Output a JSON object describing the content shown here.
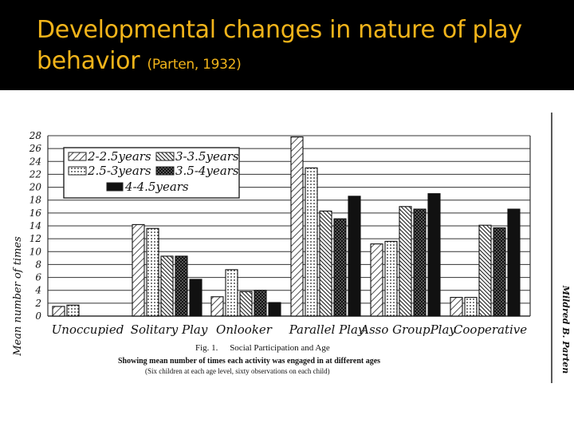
{
  "slide": {
    "title_main": "Developmental changes in nature of play behavior",
    "title_cite": "(Parten, 1932)"
  },
  "chart_data": {
    "type": "bar",
    "ylabel": "Mean number of times",
    "ylim": [
      0,
      28
    ],
    "y_ticks": [
      0,
      2,
      4,
      6,
      8,
      10,
      12,
      14,
      16,
      18,
      20,
      22,
      24,
      26,
      28
    ],
    "grid": true,
    "legend_placement": "top-left",
    "categories": [
      "Unoccupied",
      "Solitary Play",
      "Onlooker",
      "Parallel Play",
      "Asso GroupPlay",
      "Cooperative"
    ],
    "series": [
      {
        "name": "2-2.5years",
        "pattern": "diagonal-stripes",
        "values": [
          1.5,
          14.2,
          3.0,
          27.8,
          11.2,
          2.9
        ]
      },
      {
        "name": "2.5-3years",
        "pattern": "dots",
        "values": [
          1.7,
          13.6,
          7.2,
          23.0,
          11.6,
          2.9
        ]
      },
      {
        "name": "3-3.5years",
        "pattern": "dense-diagonal",
        "values": [
          0,
          9.3,
          3.8,
          16.3,
          17.0,
          14.1
        ]
      },
      {
        "name": "3.5-4years",
        "pattern": "checkered",
        "values": [
          0,
          9.3,
          4.0,
          15.1,
          16.6,
          13.7
        ]
      },
      {
        "name": "4-4.5years",
        "pattern": "solid-black",
        "values": [
          0,
          5.7,
          2.1,
          18.6,
          19.0,
          16.6
        ]
      }
    ],
    "caption": {
      "fig_label": "Fig. 1.",
      "fig_title": "Social Participation and Age",
      "line2": "Showing mean number of times each activity was engaged in at different ages",
      "line3": "(Six children at each age level, sixty observations on each child)"
    },
    "margin_note": "Mildred B. Parten"
  }
}
